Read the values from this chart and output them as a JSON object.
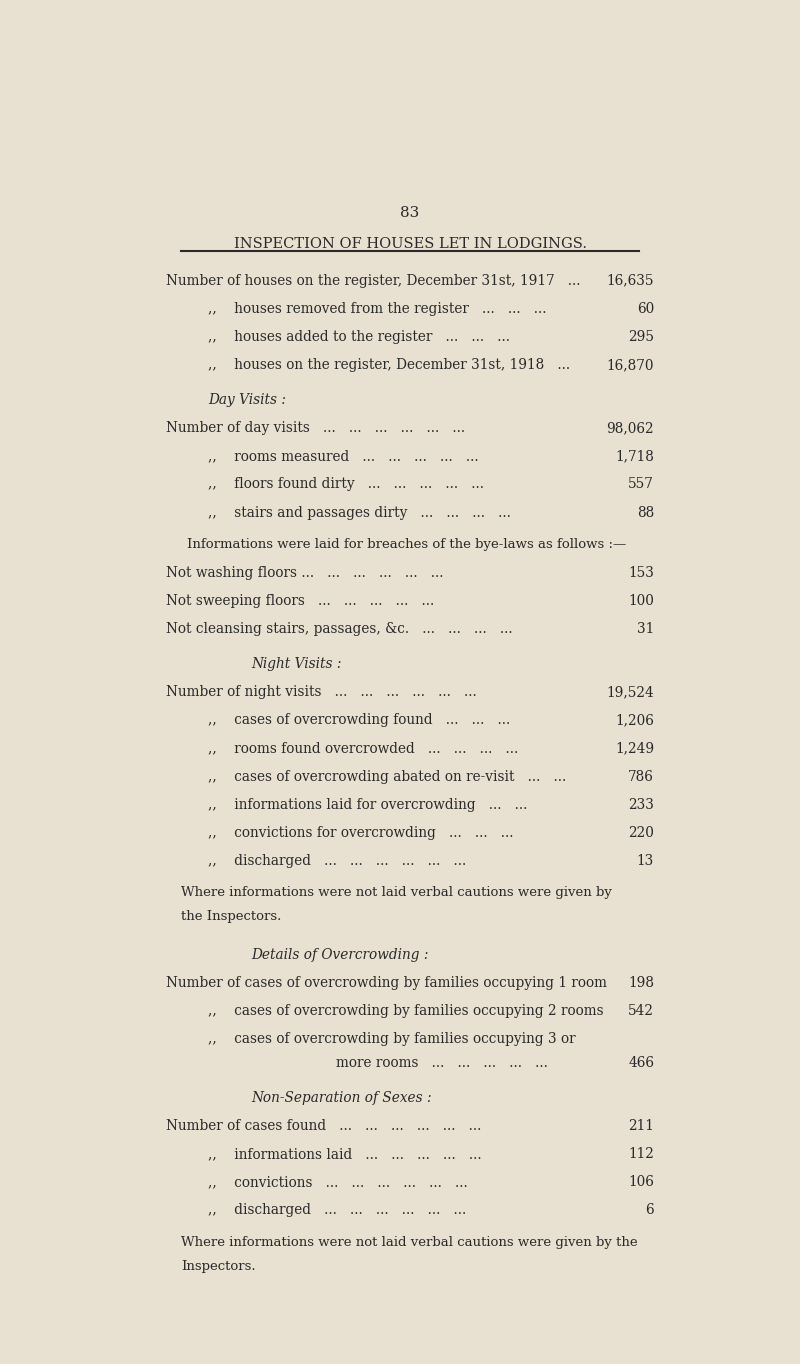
{
  "page_number": "83",
  "title": "INSPECTION OF HOUSES LET IN LODGINGS.",
  "background_color": "#e8e0d0",
  "text_color": "#2a2a2a",
  "sections": [
    {
      "type": "data_row",
      "indent": 0,
      "label": "Number of houses on the register, December 31st, 1917   ...",
      "value": "16,635"
    },
    {
      "type": "data_row",
      "indent": 1,
      "label": ",,    houses removed from the register   ...   ...   ...",
      "value": "60"
    },
    {
      "type": "data_row",
      "indent": 1,
      "label": ",,    houses added to the register   ...   ...   ...",
      "value": "295"
    },
    {
      "type": "data_row",
      "indent": 1,
      "label": ",,    houses on the register, December 31st, 1918   ...",
      "value": "16,870"
    },
    {
      "type": "section_header",
      "indent": 1,
      "label": "Day Visits :"
    },
    {
      "type": "data_row",
      "indent": 0,
      "label": "Number of day visits   ...   ...   ...   ...   ...   ...",
      "value": "98,062"
    },
    {
      "type": "data_row",
      "indent": 1,
      "label": ",,    rooms measured   ...   ...   ...   ...   ...",
      "value": "1,718"
    },
    {
      "type": "data_row",
      "indent": 1,
      "label": ",,    floors found dirty   ...   ...   ...   ...   ...",
      "value": "557"
    },
    {
      "type": "data_row",
      "indent": 1,
      "label": ",,    stairs and passages dirty   ...   ...   ...   ...",
      "value": "88"
    },
    {
      "type": "paragraph",
      "indent": 1,
      "label": "Informations were laid for breaches of the bye-laws as follows :—"
    },
    {
      "type": "data_row",
      "indent": 0,
      "label": "Not washing floors ...   ...   ...   ...   ...   ...",
      "value": "153"
    },
    {
      "type": "data_row",
      "indent": 0,
      "label": "Not sweeping floors   ...   ...   ...   ...   ...",
      "value": "100"
    },
    {
      "type": "data_row",
      "indent": 0,
      "label": "Not cleansing stairs, passages, &c.   ...   ...   ...   ...",
      "value": "31"
    },
    {
      "type": "section_header",
      "indent": 2,
      "label": "Night Visits :"
    },
    {
      "type": "data_row",
      "indent": 0,
      "label": "Number of night visits   ...   ...   ...   ...   ...   ...",
      "value": "19,524"
    },
    {
      "type": "data_row",
      "indent": 1,
      "label": ",,    cases of overcrowding found   ...   ...   ...",
      "value": "1,206"
    },
    {
      "type": "data_row",
      "indent": 1,
      "label": ",,    rooms found overcrowded   ...   ...   ...   ...",
      "value": "1,249"
    },
    {
      "type": "data_row",
      "indent": 1,
      "label": ",,    cases of overcrowding abated on re-visit   ...   ...",
      "value": "786"
    },
    {
      "type": "data_row",
      "indent": 1,
      "label": ",,    informations laid for overcrowding   ...   ...",
      "value": "233"
    },
    {
      "type": "data_row",
      "indent": 1,
      "label": ",,    convictions for overcrowding   ...   ...   ...",
      "value": "220"
    },
    {
      "type": "data_row",
      "indent": 1,
      "label": ",,    discharged   ...   ...   ...   ...   ...   ...",
      "value": "13"
    },
    {
      "type": "paragraph_wrap",
      "indent": 1,
      "label": "Where informations were not laid verbal cautions were given by\nthe Inspectors."
    },
    {
      "type": "section_header",
      "indent": 2,
      "label": "Details of Overcrowding :"
    },
    {
      "type": "data_row",
      "indent": 0,
      "label": "Number of cases of overcrowding by families occupying 1 room",
      "value": "198"
    },
    {
      "type": "data_row",
      "indent": 1,
      "label": ",,    cases of overcrowding by families occupying 2 rooms",
      "value": "542"
    },
    {
      "type": "data_row_wrap",
      "indent": 1,
      "label_line1": ",,    cases of overcrowding by families occupying 3 or",
      "label_line2": "more rooms   ...   ...   ...   ...   ...",
      "value": "466"
    },
    {
      "type": "section_header",
      "indent": 2,
      "label": "Non-Separation of Sexes :"
    },
    {
      "type": "data_row",
      "indent": 0,
      "label": "Number of cases found   ...   ...   ...   ...   ...   ...",
      "value": "211"
    },
    {
      "type": "data_row",
      "indent": 1,
      "label": ",,    informations laid   ...   ...   ...   ...   ...",
      "value": "112"
    },
    {
      "type": "data_row",
      "indent": 1,
      "label": ",,    convictions   ...   ...   ...   ...   ...   ...",
      "value": "106"
    },
    {
      "type": "data_row",
      "indent": 1,
      "label": ",,    discharged   ...   ...   ...   ...   ...   ...",
      "value": "6"
    },
    {
      "type": "paragraph_wrap",
      "indent": 1,
      "label": "Where informations were not laid verbal cautions were given by the\nInspectors."
    }
  ]
}
